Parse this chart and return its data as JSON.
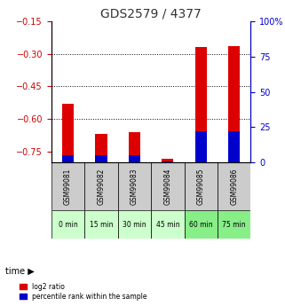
{
  "title": "GDS2579 / 4377",
  "samples": [
    "GSM99081",
    "GSM99082",
    "GSM99083",
    "GSM99084",
    "GSM99085",
    "GSM99086"
  ],
  "time_labels": [
    "0 min",
    "15 min",
    "30 min",
    "45 min",
    "60 min",
    "75 min"
  ],
  "log2_values": [
    -0.53,
    -0.67,
    -0.66,
    -0.782,
    -0.27,
    -0.265
  ],
  "percentile_values": [
    5.0,
    5.0,
    5.0,
    0.5,
    22.0,
    22.0
  ],
  "ylim_left": [
    -0.8,
    -0.15
  ],
  "ylim_right": [
    0,
    100
  ],
  "yticks_left": [
    -0.75,
    -0.6,
    -0.45,
    -0.3,
    -0.15
  ],
  "yticks_right": [
    0,
    25,
    50,
    75,
    100
  ],
  "ytick_labels_right": [
    "0",
    "25",
    "50",
    "75",
    "100%"
  ],
  "bar_color_red": "#dd0000",
  "bar_color_blue": "#0000cc",
  "time_bg_colors": [
    "#ccffcc",
    "#ccffcc",
    "#ccffcc",
    "#ccffcc",
    "#88ee88",
    "#88ee88"
  ],
  "sample_bg_color": "#cccccc",
  "grid_color": "#000000",
  "title_color": "#333333",
  "left_axis_color": "#cc0000",
  "right_axis_color": "#0000cc",
  "bar_width": 0.35
}
